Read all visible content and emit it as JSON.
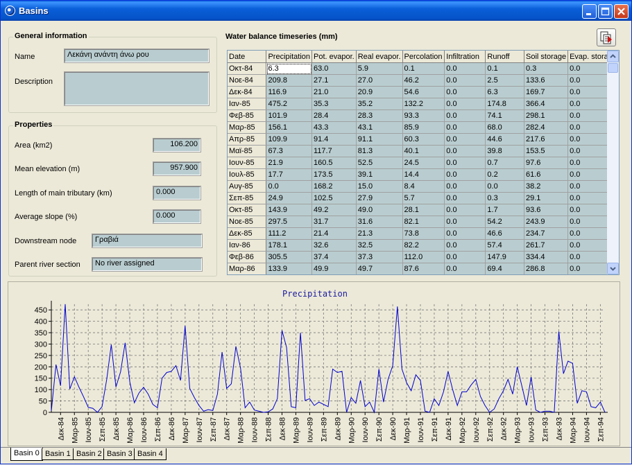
{
  "window": {
    "title": "Basins"
  },
  "general": {
    "title": "General information",
    "name_label": "Name",
    "name_value": "Λεκάνη ανάντη άνω ρου",
    "description_label": "Description",
    "description_value": ""
  },
  "properties": {
    "title": "Properties",
    "area_label": "Area (km2)",
    "area_value": "106.200",
    "elev_label": "Mean elevation (m)",
    "elev_value": "957.900",
    "length_label": "Length of main tributary (km)",
    "length_value": "0.000",
    "slope_label": "Average slope (%)",
    "slope_value": "0.000",
    "downstream_label": "Downstream node",
    "downstream_value": "Γραβιά",
    "parent_label": "Parent river section",
    "parent_value": "No river assigned"
  },
  "table": {
    "title": "Water balance timeseries (mm)",
    "columns": [
      "Date",
      "Precipitation",
      "Pot. evapor.",
      "Real evapor.",
      "Percolation",
      "Infiltration",
      "Runoff",
      "Soil storage",
      "Evap. storage"
    ],
    "rows": [
      [
        "Οκτ-84",
        "6.3",
        "63.0",
        "5.9",
        "0.1",
        "0.0",
        "0.1",
        "0.3",
        "0.0"
      ],
      [
        "Νοε-84",
        "209.8",
        "27.1",
        "27.0",
        "46.2",
        "0.0",
        "2.5",
        "133.6",
        "0.0"
      ],
      [
        "Δεκ-84",
        "116.9",
        "21.0",
        "20.9",
        "54.6",
        "0.0",
        "6.3",
        "169.7",
        "0.0"
      ],
      [
        "Ιαν-85",
        "475.2",
        "35.3",
        "35.2",
        "132.2",
        "0.0",
        "174.8",
        "366.4",
        "0.0"
      ],
      [
        "Φεβ-85",
        "101.9",
        "28.4",
        "28.3",
        "93.3",
        "0.0",
        "74.1",
        "298.1",
        "0.0"
      ],
      [
        "Μαρ-85",
        "156.1",
        "43.3",
        "43.1",
        "85.9",
        "0.0",
        "68.0",
        "282.4",
        "0.0"
      ],
      [
        "Απρ-85",
        "109.9",
        "91.4",
        "91.1",
        "60.3",
        "0.0",
        "44.6",
        "217.6",
        "0.0"
      ],
      [
        "Μαϊ-85",
        "67.3",
        "117.7",
        "81.3",
        "40.1",
        "0.0",
        "39.8",
        "153.5",
        "0.0"
      ],
      [
        "Ιουν-85",
        "21.9",
        "160.5",
        "52.5",
        "24.5",
        "0.0",
        "0.7",
        "97.6",
        "0.0"
      ],
      [
        "Ιουλ-85",
        "17.7",
        "173.5",
        "39.1",
        "14.4",
        "0.0",
        "0.2",
        "61.6",
        "0.0"
      ],
      [
        "Αυγ-85",
        "0.0",
        "168.2",
        "15.0",
        "8.4",
        "0.0",
        "0.0",
        "38.2",
        "0.0"
      ],
      [
        "Σεπ-85",
        "24.9",
        "102.5",
        "27.9",
        "5.7",
        "0.0",
        "0.3",
        "29.1",
        "0.0"
      ],
      [
        "Οκτ-85",
        "143.9",
        "49.2",
        "49.0",
        "28.1",
        "0.0",
        "1.7",
        "93.6",
        "0.0"
      ],
      [
        "Νοε-85",
        "297.5",
        "31.7",
        "31.6",
        "82.1",
        "0.0",
        "54.2",
        "243.9",
        "0.0"
      ],
      [
        "Δεκ-85",
        "111.2",
        "21.4",
        "21.3",
        "73.8",
        "0.0",
        "46.6",
        "234.7",
        "0.0"
      ],
      [
        "Ιαν-86",
        "178.1",
        "32.6",
        "32.5",
        "82.2",
        "0.0",
        "57.4",
        "261.7",
        "0.0"
      ],
      [
        "Φεβ-86",
        "305.5",
        "37.4",
        "37.3",
        "112.0",
        "0.0",
        "147.9",
        "334.4",
        "0.0"
      ],
      [
        "Μαρ-86",
        "133.9",
        "49.9",
        "49.7",
        "87.6",
        "0.0",
        "69.4",
        "286.8",
        "0.0"
      ]
    ]
  },
  "chart_data": {
    "type": "line",
    "title": "Precipitation",
    "color": "#0000cc",
    "ylim": [
      0,
      475
    ],
    "yticks": [
      0,
      50,
      100,
      150,
      200,
      250,
      300,
      350,
      400,
      450
    ],
    "grid": true,
    "xtick_labels": [
      "Δεκ-84",
      "Μαρ-85",
      "Ιουν-85",
      "Σεπ-85",
      "Δεκ-85",
      "Μαρ-86",
      "Ιουν-86",
      "Σεπ-86",
      "Δεκ-86",
      "Μαρ-87",
      "Ιουν-87",
      "Σεπ-87",
      "Δεκ-87",
      "Μαρ-88",
      "Ιουν-88",
      "Σεπ-88",
      "Δεκ-88",
      "Μαρ-89",
      "Ιουν-89",
      "Σεπ-89",
      "Δεκ-89",
      "Μαρ-90",
      "Ιουν-90",
      "Σεπ-90",
      "Δεκ-90",
      "Μαρ-91",
      "Ιουν-91",
      "Σεπ-91",
      "Δεκ-91",
      "Μαρ-92",
      "Ιουν-92",
      "Σεπ-92",
      "Δεκ-92",
      "Μαρ-93",
      "Ιουν-93",
      "Σεπ-93",
      "Δεκ-93",
      "Μαρ-94",
      "Ιουν-94",
      "Σεπ-94"
    ],
    "x_start": "Οκτ-84",
    "values": [
      6.3,
      209.8,
      116.9,
      475.2,
      101.9,
      156.1,
      109.9,
      67.3,
      21.9,
      17.7,
      0,
      24.9,
      143.9,
      297.5,
      111.2,
      178.1,
      305.5,
      133.9,
      42,
      85,
      110,
      80,
      35,
      20,
      150,
      175,
      180,
      205,
      140,
      380,
      105,
      65,
      30,
      5,
      12,
      8,
      80,
      265,
      105,
      125,
      290,
      195,
      20,
      45,
      10,
      5,
      0,
      2,
      15,
      60,
      360,
      285,
      25,
      20,
      350,
      52,
      60,
      30,
      45,
      35,
      25,
      190,
      175,
      180,
      0,
      65,
      40,
      140,
      25,
      45,
      0,
      190,
      45,
      145,
      205,
      465,
      190,
      130,
      95,
      165,
      140,
      5,
      0,
      60,
      30,
      90,
      180,
      100,
      30,
      90,
      90,
      120,
      145,
      70,
      30,
      0,
      15,
      60,
      95,
      145,
      80,
      200,
      115,
      30,
      155,
      10,
      0,
      5,
      5,
      0,
      355,
      170,
      225,
      215,
      40,
      95,
      90,
      25,
      20,
      45,
      0
    ]
  },
  "tabs": [
    "Basin 0",
    "Basin 1",
    "Basin 2",
    "Basin 3",
    "Basin 4"
  ]
}
